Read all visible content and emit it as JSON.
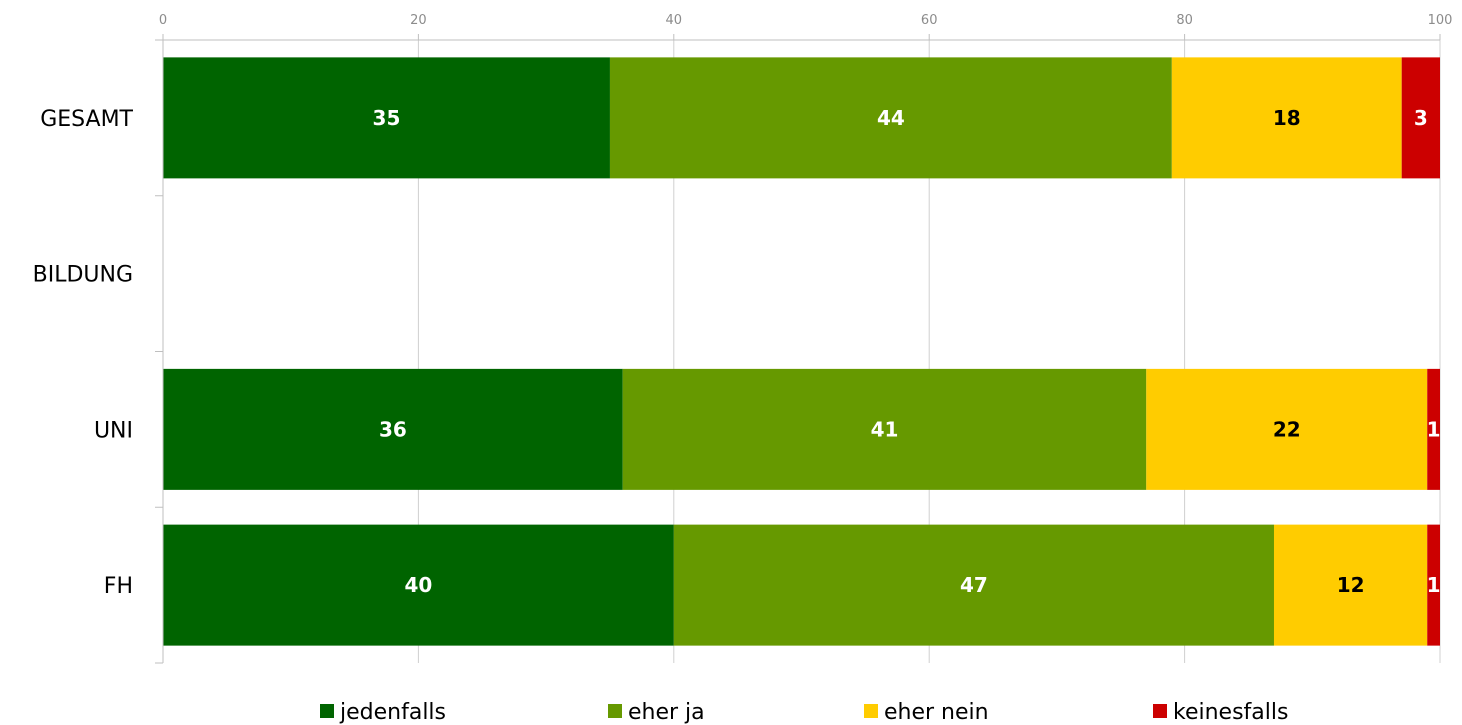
{
  "chart_data": {
    "type": "bar",
    "orientation": "horizontal",
    "stacked": true,
    "categories": [
      "GESAMT",
      "BILDUNG",
      "UNI",
      "FH"
    ],
    "series": [
      {
        "name": "jedenfalls",
        "color": "#006400",
        "label_color": "#ffffff",
        "values": [
          35,
          null,
          36,
          40
        ]
      },
      {
        "name": "eher ja",
        "color": "#669900",
        "label_color": "#ffffff",
        "values": [
          44,
          null,
          41,
          47
        ]
      },
      {
        "name": "eher nein",
        "color": "#ffcc00",
        "label_color": "#000000",
        "values": [
          18,
          null,
          22,
          12
        ]
      },
      {
        "name": "keinesfalls",
        "color": "#cc0000",
        "label_color": "#ffffff",
        "values": [
          3,
          null,
          1,
          1
        ]
      }
    ],
    "xlim": [
      0,
      100
    ],
    "xticks": [
      0,
      20,
      40,
      60,
      80,
      100
    ],
    "x_axis_position": "top",
    "grid": true,
    "legend": "bottom"
  }
}
